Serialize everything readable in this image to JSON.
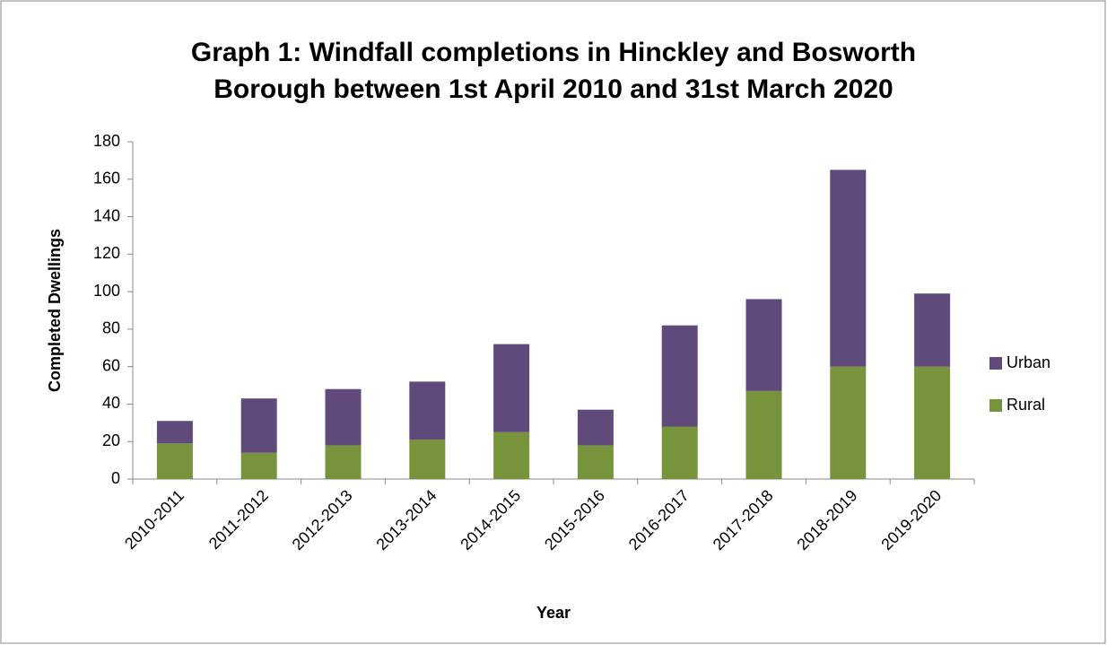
{
  "chart_data": {
    "type": "stacked_bar",
    "title": "Graph 1: Windfall completions in Hinckley and Bosworth Borough between 1st April 2010 and 31st March 2020",
    "x_label": "Year",
    "y_label": "Completed Dwellings",
    "categories": [
      "2010-2011",
      "2011-2012",
      "2012-2013",
      "2013-2014",
      "2014-2015",
      "2015-2016",
      "2016-2017",
      "2017-2018",
      "2018-2019",
      "2019-2020"
    ],
    "series": [
      {
        "name": "Rural",
        "color": "#77933c",
        "values": [
          19,
          14,
          18,
          21,
          25,
          18,
          28,
          47,
          60,
          60
        ]
      },
      {
        "name": "Urban",
        "color": "#604a7b",
        "values": [
          12,
          29,
          30,
          31,
          47,
          19,
          54,
          49,
          105,
          39
        ]
      }
    ],
    "ylim": [
      0,
      180
    ],
    "yticks": [
      0,
      20,
      40,
      60,
      80,
      100,
      120,
      140,
      160,
      180
    ],
    "legend": "right"
  }
}
